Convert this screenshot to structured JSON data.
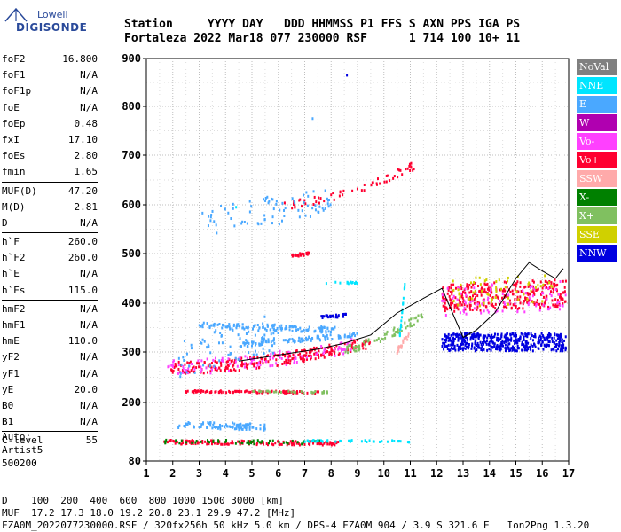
{
  "logo": {
    "line1": "Lowell",
    "line2": "DIGISONDE"
  },
  "header": {
    "columns": [
      "Station",
      "YYYY",
      "DAY",
      "DDD",
      "HHMMSS",
      "P1",
      "FFS",
      "S",
      "AXN",
      "PPS",
      "IGA",
      "PS"
    ],
    "values": [
      "Fortaleza",
      "2022",
      "Mar18",
      "077",
      "230000",
      "RSF",
      "",
      "1",
      "714",
      "100",
      "10+",
      "11"
    ]
  },
  "parameters": [
    [
      {
        "k": "foF2",
        "v": "16.800"
      },
      {
        "k": "foF1",
        "v": "N/A"
      },
      {
        "k": "foF1p",
        "v": "N/A"
      },
      {
        "k": "foE",
        "v": "N/A"
      },
      {
        "k": "foEp",
        "v": "0.48"
      },
      {
        "k": "fxI",
        "v": "17.10"
      },
      {
        "k": "foEs",
        "v": "2.80"
      },
      {
        "k": "fmin",
        "v": "1.65"
      }
    ],
    [
      {
        "k": "MUF(D)",
        "v": "47.20"
      },
      {
        "k": "M(D)",
        "v": "2.81"
      },
      {
        "k": "D",
        "v": "N/A"
      }
    ],
    [
      {
        "k": "h`F",
        "v": "260.0"
      },
      {
        "k": "h`F2",
        "v": "260.0"
      },
      {
        "k": "h`E",
        "v": "N/A"
      },
      {
        "k": "h`Es",
        "v": "115.0"
      }
    ],
    [
      {
        "k": "hmF2",
        "v": "N/A"
      },
      {
        "k": "hmF1",
        "v": "N/A"
      },
      {
        "k": "hmE",
        "v": "110.0"
      },
      {
        "k": "yF2",
        "v": "N/A"
      },
      {
        "k": "yF1",
        "v": "N/A"
      },
      {
        "k": "yE",
        "v": "20.0"
      },
      {
        "k": "B0",
        "v": "N/A"
      },
      {
        "k": "B1",
        "v": "N/A"
      }
    ],
    [
      {
        "k": "C-level",
        "v": "55"
      }
    ]
  ],
  "auto": {
    "line1": "Auto:",
    "line2": "Artist5",
    "line3": "500200"
  },
  "legend": [
    {
      "label": "NoVal",
      "color": "#808080"
    },
    {
      "label": "NNE",
      "color": "#00e5ff"
    },
    {
      "label": "E",
      "color": "#4aa8ff"
    },
    {
      "label": "W",
      "color": "#b000b0"
    },
    {
      "label": "Vo-",
      "color": "#ff40ff"
    },
    {
      "label": "Vo+",
      "color": "#ff0030"
    },
    {
      "label": "SSW",
      "color": "#ffaaaa"
    },
    {
      "label": "X-",
      "color": "#008000"
    },
    {
      "label": "X+",
      "color": "#80c060"
    },
    {
      "label": "SSE",
      "color": "#d0d000"
    },
    {
      "label": "NNW",
      "color": "#0000e0"
    }
  ],
  "chart_data": {
    "type": "scatter",
    "xlim": [
      1,
      17
    ],
    "ylim": [
      80,
      900
    ],
    "x_ticks": [
      "1",
      "2",
      "3",
      "4",
      "5",
      "6",
      "7",
      "8",
      "9",
      "10",
      "11",
      "12",
      "13",
      "14",
      "15",
      "16",
      "17"
    ],
    "y_ticks": [
      "80",
      "200",
      "300",
      "400",
      "500",
      "600",
      "700",
      "800",
      "900"
    ],
    "y_tick_values": [
      80,
      200,
      300,
      400,
      500,
      600,
      700,
      800,
      900
    ],
    "grid": true,
    "traces": [
      {
        "series": "Vo+",
        "x0": 1.9,
        "x1": 9.5,
        "y0": 268,
        "y1": 320,
        "curve": 1.8,
        "density": 260,
        "spread": 12
      },
      {
        "series": "E",
        "x0": 3.0,
        "x1": 8.2,
        "y0": 355,
        "y1": 345,
        "curve": 1,
        "density": 120,
        "spread": 6
      },
      {
        "series": "E",
        "x0": 4.5,
        "x1": 9.0,
        "y0": 315,
        "y1": 335,
        "curve": 1,
        "density": 100,
        "spread": 5
      },
      {
        "series": "Vo-",
        "x0": 1.8,
        "x1": 9.0,
        "y0": 270,
        "y1": 315,
        "curve": 1.8,
        "density": 110,
        "spread": 15
      },
      {
        "series": "X+",
        "x0": 8.5,
        "x1": 11.5,
        "y0": 305,
        "y1": 375,
        "curve": 1.4,
        "density": 70,
        "spread": 8
      },
      {
        "series": "E",
        "x0": 2.2,
        "x1": 5.5,
        "y0": 155,
        "y1": 150,
        "curve": 1,
        "density": 90,
        "spread": 7
      },
      {
        "series": "Vo+",
        "x0": 1.6,
        "x1": 8.4,
        "y0": 119,
        "y1": 116,
        "curve": 1,
        "density": 140,
        "spread": 4
      },
      {
        "series": "X-",
        "x0": 1.6,
        "x1": 8.0,
        "y0": 120,
        "y1": 118,
        "curve": 1,
        "density": 60,
        "spread": 4
      },
      {
        "series": "NNE",
        "x0": 7.0,
        "x1": 11.0,
        "y0": 121,
        "y1": 120,
        "curve": 1,
        "density": 40,
        "spread": 2
      },
      {
        "series": "Vo+",
        "x0": 2.5,
        "x1": 7.6,
        "y0": 222,
        "y1": 220,
        "curve": 1,
        "density": 100,
        "spread": 2
      },
      {
        "series": "X+",
        "x0": 5.0,
        "x1": 8.0,
        "y0": 221,
        "y1": 220,
        "curve": 1,
        "density": 30,
        "spread": 2
      },
      {
        "series": "Vo+",
        "x0": 6.2,
        "x1": 11.2,
        "y0": 600,
        "y1": 680,
        "curve": 1.6,
        "density": 60,
        "spread": 8
      },
      {
        "series": "E",
        "x0": 3.0,
        "x1": 8.0,
        "y0": 560,
        "y1": 610,
        "curve": 1,
        "density": 80,
        "spread": 30
      },
      {
        "series": "Vo+",
        "x0": 6.5,
        "x1": 7.2,
        "y0": 495,
        "y1": 500,
        "curve": 1,
        "density": 25,
        "spread": 3
      },
      {
        "series": "NNW",
        "x0": 7.6,
        "x1": 8.6,
        "y0": 372,
        "y1": 375,
        "curve": 1,
        "density": 30,
        "spread": 3
      },
      {
        "series": "NNE",
        "x0": 7.8,
        "x1": 9.0,
        "y0": 440,
        "y1": 442,
        "curve": 1,
        "density": 15,
        "spread": 2
      },
      {
        "series": "NNW",
        "x0": 12.2,
        "x1": 16.9,
        "y0": 320,
        "y1": 320,
        "curve": 1,
        "density": 450,
        "spread": 18
      },
      {
        "series": "Vo+",
        "x0": 12.2,
        "x1": 16.9,
        "y0": 410,
        "y1": 420,
        "curve": 1,
        "density": 320,
        "spread": 28
      },
      {
        "series": "Vo-",
        "x0": 12.2,
        "x1": 16.9,
        "y0": 405,
        "y1": 415,
        "curve": 1,
        "density": 90,
        "spread": 30
      },
      {
        "series": "SSE",
        "x0": 12.5,
        "x1": 16.5,
        "y0": 420,
        "y1": 430,
        "curve": 1,
        "density": 60,
        "spread": 30
      },
      {
        "series": "E",
        "x0": 2.2,
        "x1": 6.0,
        "y0": 290,
        "y1": 340,
        "curve": 1,
        "density": 80,
        "spread": 40
      },
      {
        "series": "NNE",
        "x0": 10.6,
        "x1": 10.8,
        "y0": 330,
        "y1": 440,
        "curve": 1,
        "density": 25,
        "spread": 3
      },
      {
        "series": "SSW",
        "x0": 10.5,
        "x1": 11.0,
        "y0": 300,
        "y1": 340,
        "curve": 1,
        "density": 20,
        "spread": 6
      }
    ],
    "profile": [
      [
        4.5,
        282
      ],
      [
        5.5,
        290
      ],
      [
        6.5,
        298
      ],
      [
        7.5,
        306
      ],
      [
        8.5,
        318
      ],
      [
        9.5,
        335
      ],
      [
        10.5,
        380
      ],
      [
        11.5,
        410
      ],
      [
        12.2,
        430
      ],
      [
        12.6,
        380
      ],
      [
        13.0,
        330
      ],
      [
        13.5,
        345
      ],
      [
        14.2,
        380
      ],
      [
        15.0,
        450
      ],
      [
        15.5,
        482
      ],
      [
        16.0,
        465
      ],
      [
        16.5,
        450
      ],
      [
        16.8,
        470
      ]
    ],
    "outliers": [
      {
        "series": "NNW",
        "x": 8.6,
        "y": 865
      },
      {
        "series": "E",
        "x": 7.3,
        "y": 775
      },
      {
        "series": "NNE",
        "x": 4.4,
        "y": 595
      }
    ]
  },
  "footer": {
    "line1": "D    100  200  400  600  800 1000 1500 3000 [km]",
    "line2": "MUF  17.2 17.3 18.0 19.2 20.8 23.1 29.9 47.2 [MHz]",
    "line3": "FZA0M_2022077230000.RSF / 320fx256h 50 kHz 5.0 km / DPS-4 FZA0M 904 / 3.9 S 321.6 E   Ion2Png 1.3.20"
  }
}
